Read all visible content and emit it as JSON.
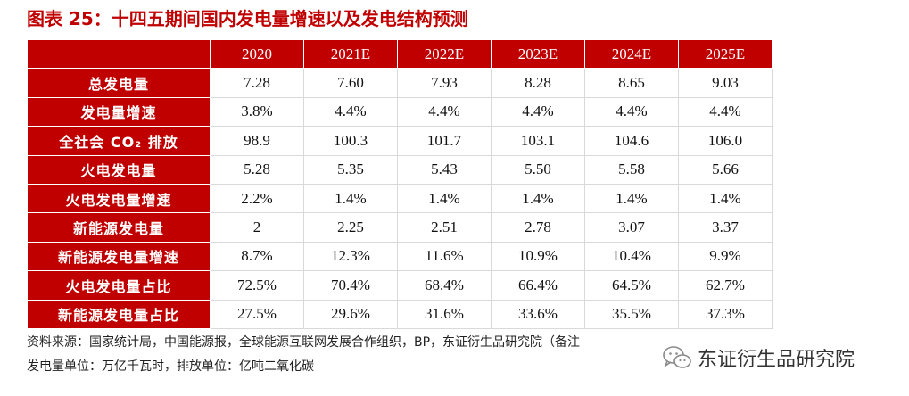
{
  "title": "图表 25：十四五期间国内发电量增速以及发电结构预测",
  "table": {
    "corner": "",
    "columns": [
      "2020",
      "2021E",
      "2022E",
      "2023E",
      "2024E",
      "2025E"
    ],
    "rows": [
      {
        "label": "总发电量",
        "values": [
          "7.28",
          "7.60",
          "7.93",
          "8.28",
          "8.65",
          "9.03"
        ]
      },
      {
        "label": "发电量增速",
        "values": [
          "3.8%",
          "4.4%",
          "4.4%",
          "4.4%",
          "4.4%",
          "4.4%"
        ]
      },
      {
        "label": "全社会 CO₂ 排放",
        "values": [
          "98.9",
          "100.3",
          "101.7",
          "103.1",
          "104.6",
          "106.0"
        ]
      },
      {
        "label": "火电发电量",
        "values": [
          "5.28",
          "5.35",
          "5.43",
          "5.50",
          "5.58",
          "5.66"
        ]
      },
      {
        "label": "火电发电量增速",
        "values": [
          "2.2%",
          "1.4%",
          "1.4%",
          "1.4%",
          "1.4%",
          "1.4%"
        ]
      },
      {
        "label": "新能源发电量",
        "values": [
          "2",
          "2.25",
          "2.51",
          "2.78",
          "3.07",
          "3.37"
        ]
      },
      {
        "label": "新能源发电量增速",
        "values": [
          "8.7%",
          "12.3%",
          "11.6%",
          "10.9%",
          "10.4%",
          "9.9%"
        ]
      },
      {
        "label": "火电发电量占比",
        "values": [
          "72.5%",
          "70.4%",
          "68.4%",
          "66.4%",
          "64.5%",
          "62.7%"
        ]
      },
      {
        "label": "新能源发电量占比",
        "values": [
          "27.5%",
          "29.6%",
          "31.6%",
          "33.6%",
          "35.5%",
          "37.3%"
        ]
      }
    ]
  },
  "source_note": "资料来源：国家统计局，中国能源报，全球能源互联网发展合作组织，BP，东证衍生品研究院（备注",
  "unit_note": "发电量单位：万亿千瓦时，排放单位：亿吨二氧化碳",
  "watermark": {
    "icon": "wechat-icon",
    "text": "东证衍生品研究院"
  }
}
